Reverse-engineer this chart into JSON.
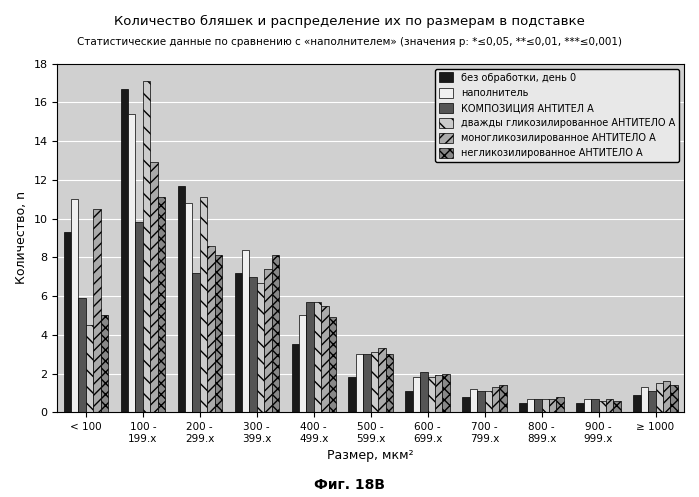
{
  "title": "Количество бляшек и распределение их по размерам в подставке",
  "subtitle": "Статистические данные по сравнению с «наполнителем» (значения р: *≤0,05, **≤0,01, ***≤0,001)",
  "xlabel": "Размер, мкм²",
  "ylabel": "Количество, n",
  "figcaption": "Фиг. 18B",
  "categories": [
    "< 100",
    "100 -\n199.x",
    "200 -\n299.x",
    "300 -\n399.x",
    "400 -\n499.x",
    "500 -\n599.x",
    "600 -\n699.x",
    "700 -\n799.x",
    "800 -\n899.x",
    "900 -\n999.x",
    "≥ 1000"
  ],
  "series": [
    {
      "name": "без обработки, день 0",
      "color": "#1a1a1a",
      "hatch": "",
      "values": [
        9.3,
        16.7,
        11.7,
        7.2,
        3.5,
        1.8,
        1.1,
        0.8,
        0.5,
        0.5,
        0.9
      ]
    },
    {
      "name": "наполнитель",
      "color": "#f0f0f0",
      "hatch": "",
      "values": [
        11.0,
        15.4,
        10.8,
        8.4,
        5.0,
        3.0,
        1.8,
        1.2,
        0.7,
        0.7,
        1.3
      ]
    },
    {
      "name": "КОМПОЗИЦИЯ АНТИТЕЛ А",
      "color": "#555555",
      "hatch": "",
      "values": [
        5.9,
        9.8,
        7.2,
        7.0,
        5.7,
        3.0,
        2.1,
        1.1,
        0.7,
        0.7,
        1.1
      ]
    },
    {
      "name": "дважды гликозилированное АНТИТЕЛО А",
      "color": "#cccccc",
      "hatch": "\\\\",
      "values": [
        4.5,
        17.1,
        11.1,
        6.7,
        5.7,
        3.1,
        1.8,
        1.1,
        0.7,
        0.6,
        1.5
      ]
    },
    {
      "name": "моногликозилированное АНТИТЕЛО А",
      "color": "#aaaaaa",
      "hatch": "///",
      "values": [
        10.5,
        12.9,
        8.6,
        7.4,
        5.5,
        3.3,
        1.9,
        1.3,
        0.7,
        0.7,
        1.6
      ]
    },
    {
      "name": "негликозилированное АНТИТЕЛО А",
      "color": "#888888",
      "hatch": "xxx",
      "values": [
        5.0,
        11.1,
        8.1,
        8.1,
        4.9,
        3.0,
        2.0,
        1.4,
        0.8,
        0.6,
        1.4
      ]
    }
  ],
  "ylim": [
    0,
    18
  ],
  "yticks": [
    0,
    2,
    4,
    6,
    8,
    10,
    12,
    14,
    16,
    18
  ],
  "background_color": "#d0d0d0",
  "legend_background": "#e8e8e8"
}
